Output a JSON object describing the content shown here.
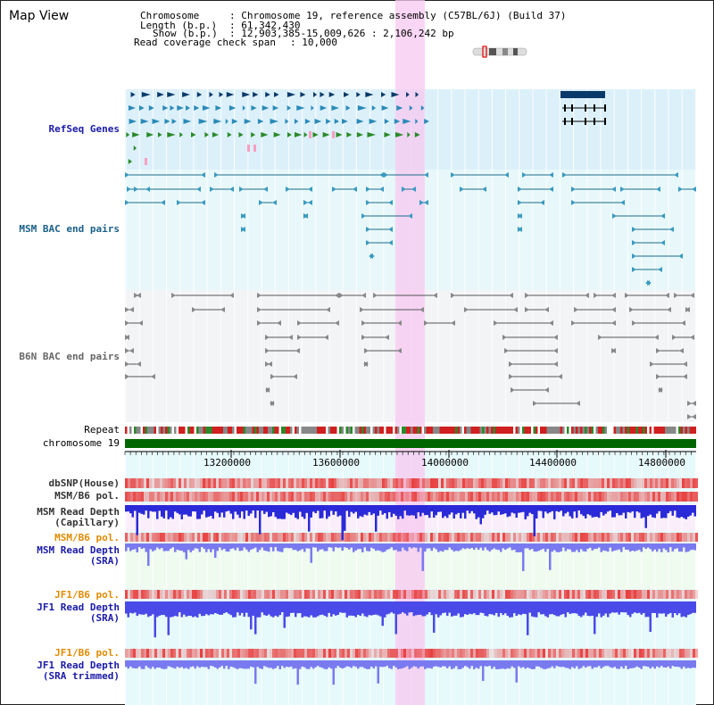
{
  "title": "Map View",
  "header": {
    "chromosome_key": "Chromosome",
    "chromosome_val": ": Chromosome 19, reference assembly (C57BL/6J) (Build 37)",
    "length_key": "Length (b.p.)",
    "length_val": ": 61,342,430",
    "show_key": "Show (b.p.)",
    "show_val": ": 12,903,385-15,009,626 : 2,106,242 bp",
    "span_key": "Read coverage check span",
    "span_val": ": 10,000"
  },
  "tracks": {
    "refseq": "RefSeq Genes",
    "msm_bac": "MSM BAC end pairs",
    "b6n_bac": "B6N BAC end pairs",
    "repeat": "Repeat",
    "chromosome": "chromosome 19",
    "dbsnp": "dbSNP(House)",
    "msm_b6_pol_1": "MSM/B6 pol.",
    "msm_depth_cap_1": "MSM Read Depth",
    "msm_depth_cap_2": "(Capillary)",
    "msm_b6_pol_2": "MSM/B6 pol.",
    "msm_depth_sra_1": "MSM Read Depth",
    "msm_depth_sra_2": "(SRA)",
    "jf1_pol_1": "JF1/B6 pol.",
    "jf1_depth_sra_1": "JF1 Read Depth",
    "jf1_depth_sra_2": "(SRA)",
    "jf1_pol_2": "JF1/B6 pol.",
    "jf1_depth_trim_1": "JF1 Read Depth",
    "jf1_depth_trim_2": "(SRA trimmed)"
  },
  "axis": {
    "ticks": [
      "13200000",
      "13600000",
      "14000000",
      "14400000",
      "14800000"
    ]
  },
  "colors": {
    "highlight": "#f7c8f0",
    "refseq_bg": "#dcf0fa",
    "msm_bg": "#e8f8fa",
    "b6n_bg": "#f2f4f6",
    "chrom": "#006600",
    "depth_blue": "#2a2ad8",
    "depth_light": "#7a7af0",
    "snp_red": "#e84040"
  }
}
